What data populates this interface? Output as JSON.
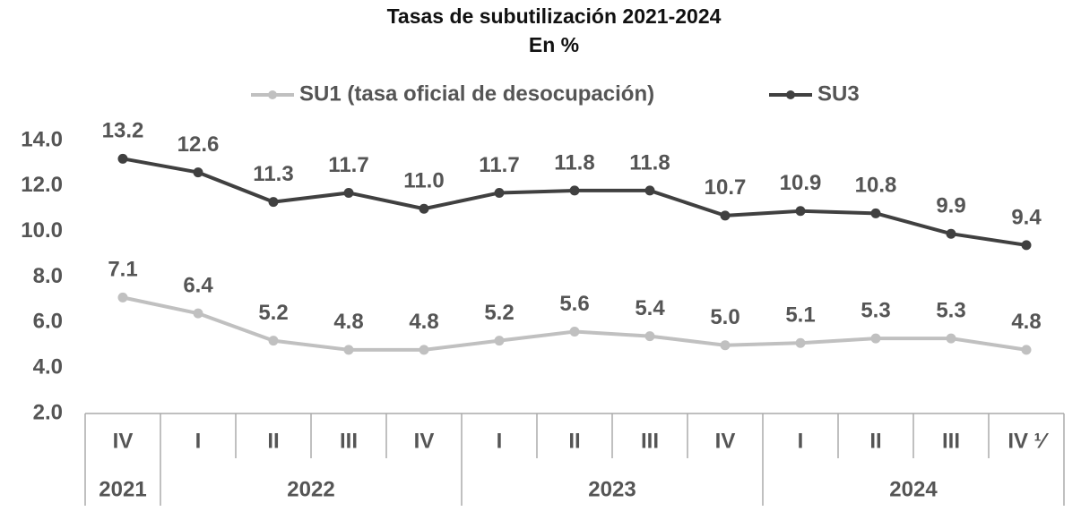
{
  "chart_data": {
    "type": "line",
    "title": "Tasas de subutilización 2021-2024",
    "subtitle": "En %",
    "categories": [
      "IV",
      "I",
      "II",
      "III",
      "IV",
      "I",
      "II",
      "III",
      "IV",
      "I",
      "II",
      "III",
      "IV ¹⁄"
    ],
    "years": [
      "2021",
      "2022",
      null,
      null,
      null,
      "2023",
      null,
      null,
      null,
      "2024",
      null,
      null,
      null
    ],
    "series": [
      {
        "name": "SU1 (tasa oficial de desocupación)",
        "color": "#c0c0c0",
        "values": [
          7.1,
          6.4,
          5.2,
          4.8,
          4.8,
          5.2,
          5.6,
          5.4,
          5.0,
          5.1,
          5.3,
          5.3,
          4.8
        ],
        "value_labels": [
          "7.1",
          "6.4",
          "5.2",
          "4.8",
          "4.8",
          "5.2",
          "5.6",
          "5.4",
          "5.0",
          "5.1",
          "5.3",
          "5.3",
          "4.8"
        ]
      },
      {
        "name": "SU3",
        "color": "#404040",
        "values": [
          13.2,
          12.6,
          11.3,
          11.7,
          11.0,
          11.7,
          11.8,
          11.8,
          10.7,
          10.9,
          10.8,
          9.9,
          9.4
        ],
        "value_labels": [
          "13.2",
          "12.6",
          "11.3",
          "11.7",
          "11.0",
          "11.7",
          "11.8",
          "11.8",
          "10.7",
          "10.9",
          "10.8",
          "9.9",
          "9.4"
        ]
      }
    ],
    "ylim": [
      2,
      14
    ],
    "yticks": [
      {
        "value": 2,
        "label": "2.0"
      },
      {
        "value": 4,
        "label": "4.0"
      },
      {
        "value": 6,
        "label": "6.0"
      },
      {
        "value": 8,
        "label": "8.0"
      },
      {
        "value": 10,
        "label": "10.0"
      },
      {
        "value": 12,
        "label": "12.0"
      },
      {
        "value": 14,
        "label": "14.0"
      }
    ],
    "grid": false,
    "legend": "top"
  }
}
